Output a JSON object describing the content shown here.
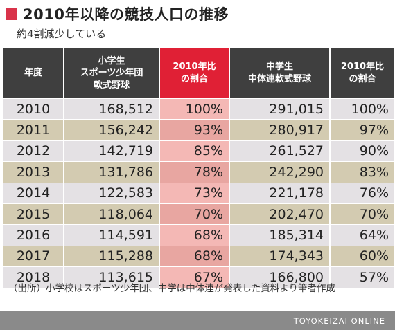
{
  "title": "2010年以降の競技人口の推移",
  "subtitle": "約4割減少している",
  "headers": {
    "year": "年度",
    "elem_line1": "小学生",
    "elem_line2": "スポーツ少年団",
    "elem_line3": "軟式野球",
    "elem_ratio_line1": "2010年比",
    "elem_ratio_line2": "の割合",
    "jh_line1": "中学生",
    "jh_line2": "中体連軟式野球",
    "jh_ratio_line1": "2010年比",
    "jh_ratio_line2": "の割合"
  },
  "rows": [
    {
      "year": "2010",
      "elem": "168,512",
      "elem_ratio": "100%",
      "jh": "291,015",
      "jh_ratio": "100%"
    },
    {
      "year": "2011",
      "elem": "156,242",
      "elem_ratio": "93%",
      "jh": "280,917",
      "jh_ratio": "97%"
    },
    {
      "year": "2012",
      "elem": "142,719",
      "elem_ratio": "85%",
      "jh": "261,527",
      "jh_ratio": "90%"
    },
    {
      "year": "2013",
      "elem": "131,786",
      "elem_ratio": "78%",
      "jh": "242,290",
      "jh_ratio": "83%"
    },
    {
      "year": "2014",
      "elem": "122,583",
      "elem_ratio": "73%",
      "jh": "221,178",
      "jh_ratio": "76%"
    },
    {
      "year": "2015",
      "elem": "118,064",
      "elem_ratio": "70%",
      "jh": "202,470",
      "jh_ratio": "70%"
    },
    {
      "year": "2016",
      "elem": "114,591",
      "elem_ratio": "68%",
      "jh": "185,314",
      "jh_ratio": "64%"
    },
    {
      "year": "2017",
      "elem": "115,288",
      "elem_ratio": "68%",
      "jh": "174,343",
      "jh_ratio": "60%"
    },
    {
      "year": "2018",
      "elem": "113,615",
      "elem_ratio": "67%",
      "jh": "166,800",
      "jh_ratio": "57%"
    }
  ],
  "source": "（出所）小学校はスポーツ少年団、中学は中体連が発表した資料より筆者作成",
  "footer": "TOYOKEIZAI ONLINE",
  "colors": {
    "accent_red": "#e02035",
    "header_dark": "#3f3f3f",
    "row_light": "#e4e1e4",
    "row_tan": "#d3cbb1"
  }
}
